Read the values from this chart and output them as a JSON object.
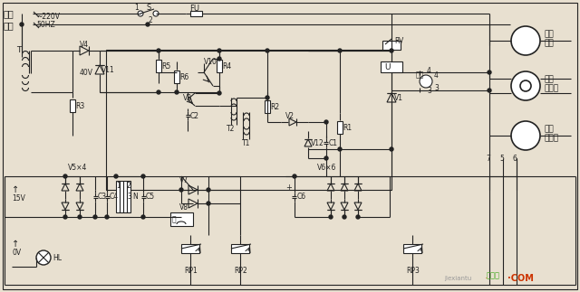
{
  "bg_color": "#e8e0d0",
  "line_color": "#222222",
  "figsize": [
    6.4,
    3.23
  ],
  "dpi": 100,
  "labels": {
    "xiangxian": "相线",
    "zhongxian": "中线",
    "voltage": "~220V",
    "freq": "50HZ",
    "T": "T",
    "V4": "V4",
    "V11": "V11",
    "40V": "40V",
    "R3": "R3",
    "R5": "R5",
    "R6": "R6",
    "V3": "V3",
    "C2": "C2",
    "R4": "R4",
    "V10": "V10",
    "R2": "R2",
    "V2": "V2",
    "T2": "T2",
    "T1": "T1",
    "V12": "V12",
    "C1": "C1",
    "R1": "R1",
    "V1": "V1",
    "RV": "RV",
    "U": "U",
    "shuchu": "输出",
    "V5x4": "V5×4",
    "15V": "15V",
    "C3": "C3",
    "C4": "C4",
    "C5": "C5",
    "V7": "V7",
    "V8": "V8",
    "V6x6": "V6×6",
    "C6": "C6",
    "RP1": "RP1",
    "RP2": "RP2",
    "RP3": "RP3",
    "HL": "HL",
    "0V": "0V",
    "S": "S",
    "FU": "FU",
    "tuodong": "拖动",
    "tuodong2": "电机",
    "dianci1": "电磁",
    "dianci2": "离合器",
    "cesu1": "测速",
    "cesu2": "发电机",
    "jiexiantu_green": "接线图",
    "dot_com": "·COM",
    "jiexiantu_gray": "jiexiantu"
  }
}
